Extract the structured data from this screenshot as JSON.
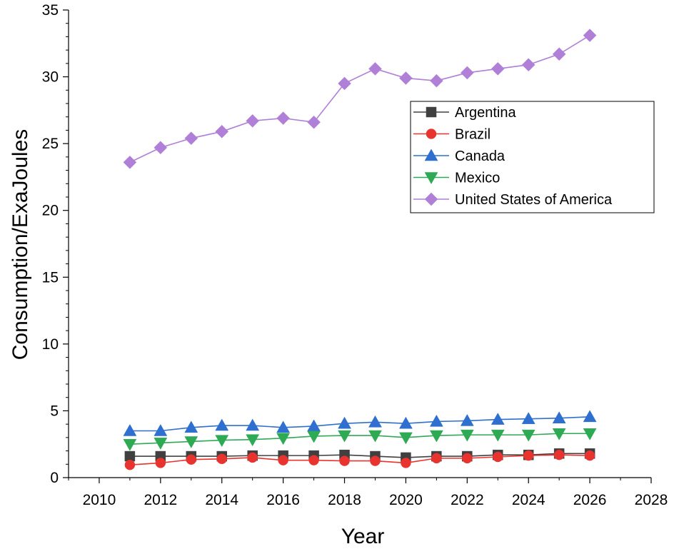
{
  "chart_data": {
    "type": "line",
    "title": "",
    "xlabel": "Year",
    "ylabel": "Consumption/ExaJoules",
    "xlim": [
      2009,
      2028
    ],
    "ylim": [
      0,
      35
    ],
    "xticks": [
      2010,
      2012,
      2014,
      2016,
      2018,
      2020,
      2022,
      2024,
      2026,
      2028
    ],
    "yticks": [
      0,
      5,
      10,
      15,
      20,
      25,
      30,
      35
    ],
    "grid": false,
    "legend_position": "upper-right",
    "x": [
      2011,
      2012,
      2013,
      2014,
      2015,
      2016,
      2017,
      2018,
      2019,
      2020,
      2021,
      2022,
      2023,
      2024,
      2025,
      2026
    ],
    "series": [
      {
        "name": "Argentina",
        "marker": "square",
        "color": "#404040",
        "values": [
          1.6,
          1.6,
          1.6,
          1.6,
          1.65,
          1.65,
          1.65,
          1.7,
          1.6,
          1.5,
          1.6,
          1.6,
          1.7,
          1.7,
          1.8,
          1.8
        ]
      },
      {
        "name": "Brazil",
        "marker": "circle",
        "color": "#e8332e",
        "values": [
          0.95,
          1.1,
          1.35,
          1.4,
          1.5,
          1.3,
          1.3,
          1.25,
          1.25,
          1.1,
          1.45,
          1.45,
          1.55,
          1.65,
          1.7,
          1.65
        ]
      },
      {
        "name": "Canada",
        "marker": "triangle-up",
        "color": "#2f6fd0",
        "values": [
          3.5,
          3.5,
          3.75,
          3.9,
          3.9,
          3.75,
          3.85,
          4.05,
          4.15,
          4.05,
          4.2,
          4.25,
          4.35,
          4.4,
          4.45,
          4.55
        ]
      },
      {
        "name": "Mexico",
        "marker": "triangle-down",
        "color": "#2eaa55",
        "values": [
          2.5,
          2.6,
          2.7,
          2.8,
          2.85,
          2.95,
          3.1,
          3.15,
          3.15,
          3.0,
          3.15,
          3.2,
          3.2,
          3.2,
          3.3,
          3.3
        ]
      },
      {
        "name": "United States of America",
        "marker": "diamond",
        "color": "#b07fd8",
        "values": [
          23.6,
          24.7,
          25.4,
          25.9,
          26.7,
          26.9,
          26.6,
          29.5,
          30.6,
          29.9,
          29.7,
          30.3,
          30.6,
          30.9,
          31.7,
          33.1
        ]
      }
    ]
  }
}
